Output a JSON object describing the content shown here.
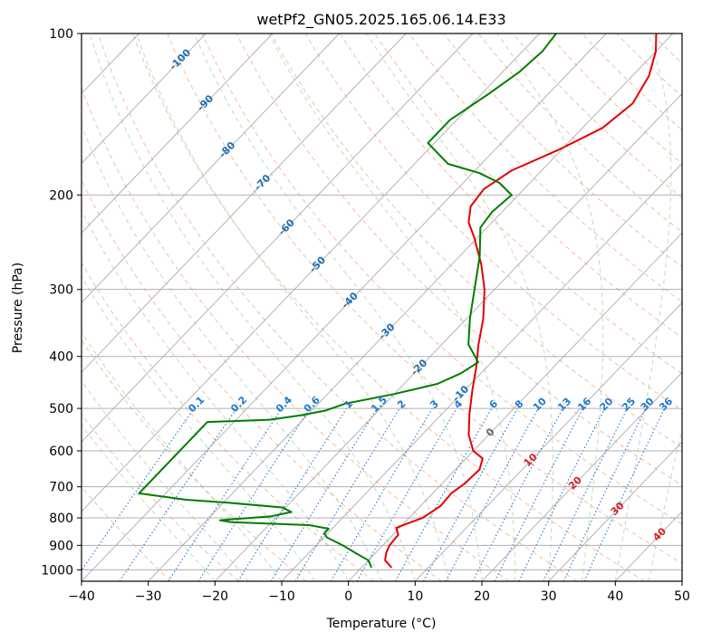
{
  "chart_data": {
    "type": "line",
    "title": "wetPf2_GN05.2025.165.06.14.E33",
    "xlabel": "Temperature (°C)",
    "ylabel": "Pressure (hPa)",
    "xlim": [
      -40,
      50
    ],
    "ylim": [
      1050,
      100
    ],
    "y_scale": "log",
    "grid": true,
    "x_ticks": [
      -40,
      -30,
      -20,
      -10,
      0,
      10,
      20,
      30,
      40,
      50
    ],
    "y_ticks": [
      100,
      200,
      300,
      400,
      500,
      600,
      700,
      800,
      900,
      1000
    ],
    "skew_deg_per_log_unit": 77,
    "colors": {
      "temperature": "#e30000",
      "dewpoint": "#007d00",
      "dry_adiabat": "#ee9977",
      "moist_adiabat": "#88c088",
      "mixing_ratio": "#1f77d4",
      "isotherm": "#999999",
      "hpa_grid": "#b0b0b0",
      "adiabat_label": "#1f6fb0",
      "isotherm_label_warm": "#d62020",
      "isotherm_label_zero": "#666666"
    },
    "series": [
      {
        "name": "",
        "role": "temperature",
        "points": [
          [
            990,
            4.5
          ],
          [
            960,
            2.5
          ],
          [
            930,
            1.6
          ],
          [
            900,
            1.0
          ],
          [
            860,
            0.8
          ],
          [
            835,
            -0.5
          ],
          [
            820,
            0.5
          ],
          [
            800,
            2.0
          ],
          [
            760,
            3.0
          ],
          [
            720,
            2.8
          ],
          [
            690,
            3.4
          ],
          [
            650,
            3.6
          ],
          [
            620,
            2.5
          ],
          [
            600,
            0.0
          ],
          [
            560,
            -3.0
          ],
          [
            510,
            -6.0
          ],
          [
            460,
            -9.0
          ],
          [
            420,
            -11.5
          ],
          [
            380,
            -14.5
          ],
          [
            340,
            -17.5
          ],
          [
            300,
            -21.5
          ],
          [
            270,
            -25.5
          ],
          [
            240,
            -30.5
          ],
          [
            225,
            -33.5
          ],
          [
            210,
            -35.5
          ],
          [
            195,
            -36.0
          ],
          [
            180,
            -34.5
          ],
          [
            165,
            -30.5
          ],
          [
            150,
            -27.0
          ],
          [
            135,
            -26.0
          ],
          [
            120,
            -27.5
          ],
          [
            108,
            -30.0
          ],
          [
            100,
            -32.5
          ]
        ]
      },
      {
        "name": "",
        "role": "dewpoint",
        "points": [
          [
            990,
            1.5
          ],
          [
            960,
            0.0
          ],
          [
            930,
            -3.0
          ],
          [
            900,
            -6.0
          ],
          [
            870,
            -9.5
          ],
          [
            855,
            -10.5
          ],
          [
            838,
            -10.5
          ],
          [
            825,
            -14.0
          ],
          [
            815,
            -26.0
          ],
          [
            808,
            -28.0
          ],
          [
            795,
            -21.0
          ],
          [
            780,
            -18.5
          ],
          [
            765,
            -20.5
          ],
          [
            750,
            -29.0
          ],
          [
            740,
            -36.0
          ],
          [
            720,
            -44.0
          ],
          [
            530,
            -44.0
          ],
          [
            525,
            -35.0
          ],
          [
            515,
            -31.0
          ],
          [
            505,
            -28.0
          ],
          [
            490,
            -26.0
          ],
          [
            470,
            -20.0
          ],
          [
            450,
            -15.0
          ],
          [
            430,
            -13.0
          ],
          [
            410,
            -12.0
          ],
          [
            380,
            -16.0
          ],
          [
            340,
            -19.5
          ],
          [
            300,
            -23.0
          ],
          [
            260,
            -27.0
          ],
          [
            230,
            -31.0
          ],
          [
            215,
            -31.5
          ],
          [
            200,
            -31.0
          ],
          [
            190,
            -34.5
          ],
          [
            182,
            -39.0
          ],
          [
            175,
            -45.0
          ],
          [
            160,
            -51.0
          ],
          [
            145,
            -51.0
          ],
          [
            130,
            -49.0
          ],
          [
            118,
            -47.5
          ],
          [
            108,
            -47.0
          ],
          [
            100,
            -47.5
          ]
        ]
      }
    ],
    "mixing_ratio_lines": {
      "values_gkg": [
        0.1,
        0.2,
        0.4,
        0.6,
        1,
        1.5,
        2,
        3,
        4,
        6,
        8,
        10,
        13,
        16,
        20,
        25,
        30,
        36
      ],
      "labels": [
        "0.1",
        "0.2",
        "0.4",
        "0.6",
        "1",
        "1.5",
        "2",
        "3",
        "4",
        "6",
        "8",
        "10",
        "13",
        "16",
        "20",
        "25",
        "30",
        "36"
      ]
    },
    "dry_adiabat_labels": [
      "-100",
      "-90",
      "-80",
      "-70",
      "-60",
      "-50",
      "-40",
      "-30",
      "-20",
      "-10"
    ],
    "isotherm_labels": [
      "0",
      "10",
      "20",
      "30",
      "40"
    ]
  }
}
